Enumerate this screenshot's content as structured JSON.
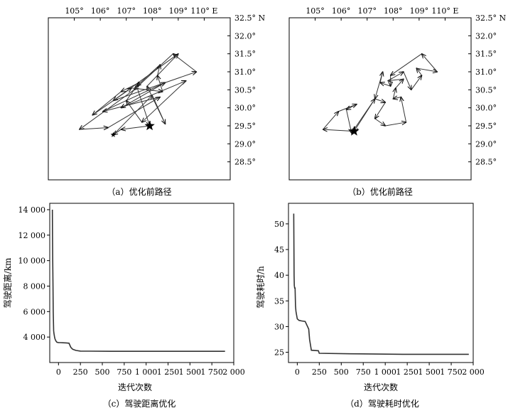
{
  "chart_data": [
    {
      "type": "line",
      "id": "a",
      "caption": "（a）优化前路径",
      "xticks": [
        "105°",
        "106°",
        "107°",
        "108°",
        "109°",
        "110° E"
      ],
      "xtick_values": [
        105,
        106,
        107,
        108,
        109,
        110
      ],
      "yticks": [
        "32.5° N",
        "32.0°",
        "31.5°",
        "31.0°",
        "30.5°",
        "30.0°",
        "29.5°",
        "29.0°",
        "28.5°"
      ],
      "ytick_values": [
        32.5,
        32.0,
        31.5,
        31.0,
        30.5,
        30.0,
        29.5,
        29.0,
        28.5
      ],
      "xlim": [
        104.0,
        111.0
      ],
      "ylim": [
        28.0,
        32.5
      ],
      "start": [
        107.9,
        29.5
      ],
      "path": [
        [
          107.9,
          29.5
        ],
        [
          106.8,
          29.4
        ],
        [
          106.5,
          29.25
        ],
        [
          108.0,
          30.35
        ],
        [
          108.5,
          29.55
        ],
        [
          107.8,
          30.6
        ],
        [
          109.0,
          31.5
        ],
        [
          106.5,
          30.2
        ],
        [
          109.7,
          31.0
        ],
        [
          108.8,
          31.5
        ],
        [
          107.3,
          30.5
        ],
        [
          105.2,
          29.4
        ],
        [
          106.3,
          29.45
        ],
        [
          108.3,
          30.3
        ],
        [
          106.1,
          29.9
        ],
        [
          108.5,
          30.7
        ],
        [
          106.8,
          30.0
        ],
        [
          109.3,
          30.75
        ],
        [
          107.6,
          29.6
        ],
        [
          107.0,
          30.2
        ],
        [
          107.5,
          30.7
        ],
        [
          106.8,
          30.45
        ],
        [
          105.7,
          29.8
        ],
        [
          107.2,
          30.55
        ],
        [
          108.4,
          30.45
        ],
        [
          108.2,
          30.9
        ],
        [
          108.3,
          31.2
        ],
        [
          107.4,
          30.6
        ],
        [
          107.9,
          29.5
        ]
      ]
    },
    {
      "type": "line",
      "id": "b",
      "caption": "（b）优化前路径",
      "xticks": [
        "105°",
        "106°",
        "107°",
        "108°",
        "109°",
        "110° E"
      ],
      "xtick_values": [
        105,
        106,
        107,
        108,
        109,
        110
      ],
      "yticks": [
        "32.5° N",
        "32.0°",
        "31.5°",
        "31.0°",
        "30.5°",
        "30.0°",
        "29.5°",
        "29.0°",
        "28.5°"
      ],
      "ytick_values": [
        32.5,
        32.0,
        31.5,
        31.0,
        30.5,
        30.0,
        29.5,
        29.0,
        28.5
      ],
      "xlim": [
        104.0,
        111.0
      ],
      "ylim": [
        28.0,
        32.5
      ],
      "start": [
        106.5,
        29.35
      ],
      "path": [
        [
          106.5,
          29.35
        ],
        [
          105.3,
          29.4
        ],
        [
          105.9,
          29.9
        ],
        [
          106.6,
          30.1
        ],
        [
          106.2,
          29.95
        ],
        [
          106.4,
          29.3
        ],
        [
          107.3,
          30.25
        ],
        [
          107.7,
          30.15
        ],
        [
          107.3,
          29.7
        ],
        [
          107.7,
          29.5
        ],
        [
          108.5,
          29.6
        ],
        [
          108.3,
          30.3
        ],
        [
          108.0,
          30.25
        ],
        [
          108.1,
          30.55
        ],
        [
          108.4,
          30.8
        ],
        [
          107.8,
          30.75
        ],
        [
          108.4,
          31.0
        ],
        [
          108.7,
          30.5
        ],
        [
          109.1,
          30.9
        ],
        [
          108.9,
          31.1
        ],
        [
          109.7,
          31.0
        ],
        [
          109.1,
          31.5
        ],
        [
          107.9,
          30.9
        ],
        [
          107.9,
          30.6
        ],
        [
          107.5,
          30.7
        ],
        [
          107.6,
          31.0
        ],
        [
          107.3,
          30.25
        ],
        [
          106.5,
          29.35
        ]
      ]
    },
    {
      "type": "line",
      "id": "c",
      "caption": "（c）驾驶距离优化",
      "xlabel": "迭代次数",
      "ylabel": "驾驶距离/km",
      "xticks": [
        "0",
        "250",
        "500",
        "750",
        "1 000",
        "1 250",
        "1 500",
        "1 750",
        "2 000"
      ],
      "xtick_values": [
        0,
        250,
        500,
        750,
        1000,
        1250,
        1500,
        1750,
        2000
      ],
      "yticks": [
        "4 000",
        "6 000",
        "8 000",
        "10 000",
        "12 000",
        "14 000"
      ],
      "ytick_values": [
        4000,
        6000,
        8000,
        10000,
        12000,
        14000
      ],
      "xlim": [
        -100,
        2000
      ],
      "ylim": [
        2000,
        14500
      ],
      "x": [
        -70,
        -68,
        -66,
        -63,
        -60,
        -57,
        -55,
        -52,
        -50,
        -45,
        -40,
        -30,
        -20,
        -10,
        0,
        20,
        50,
        90,
        120,
        140,
        160,
        180,
        200,
        250,
        600,
        1900
      ],
      "y": [
        14000,
        12000,
        10000,
        8000,
        6000,
        5000,
        4500,
        4300,
        4200,
        4000,
        3850,
        3700,
        3600,
        3580,
        3570,
        3560,
        3550,
        3540,
        3520,
        3200,
        3050,
        3000,
        2950,
        2900,
        2880,
        2880
      ]
    },
    {
      "type": "line",
      "id": "d",
      "caption": "（d）驾驶耗时优化",
      "xlabel": "迭代次数",
      "ylabel": "驾驶耗时/h",
      "xticks": [
        "0",
        "250",
        "500",
        "750",
        "1 000",
        "1 250",
        "1 500",
        "1 750",
        "2 000"
      ],
      "xtick_values": [
        0,
        250,
        500,
        750,
        1000,
        1250,
        1500,
        1750,
        2000
      ],
      "yticks": [
        "25",
        "30",
        "35",
        "40",
        "45",
        "50"
      ],
      "ytick_values": [
        25,
        30,
        35,
        40,
        45,
        50
      ],
      "xlim": [
        -100,
        2000
      ],
      "ylim": [
        23,
        54
      ],
      "x": [
        -40,
        -38,
        -36,
        -34,
        -30,
        -25,
        -20,
        -15,
        -10,
        0,
        20,
        50,
        90,
        130,
        140,
        160,
        240,
        250,
        600,
        1200,
        1950
      ],
      "y": [
        52,
        45,
        40,
        38,
        37.5,
        37.5,
        34,
        33,
        32.5,
        31.5,
        31.2,
        31.1,
        31.0,
        29.5,
        27.5,
        25.4,
        25.3,
        24.8,
        24.7,
        24.6,
        24.6
      ]
    }
  ]
}
